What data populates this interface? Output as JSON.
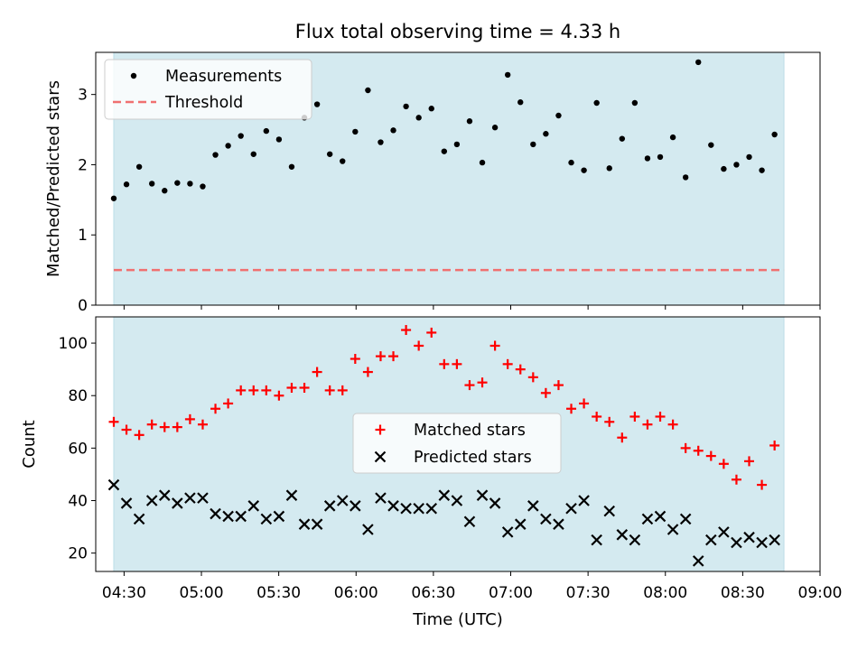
{
  "chart_data": [
    {
      "type": "scatter",
      "title": "Flux total observing time = 4.33 h",
      "xlabel": "",
      "ylabel": "Matched/Predicted stars",
      "ylim": [
        0,
        3.6
      ],
      "yticks": [
        0,
        1,
        2,
        3
      ],
      "yticklabels": [
        "0",
        "1",
        "2",
        "3"
      ],
      "x_start": "04:26",
      "x_step_minutes": 4.93,
      "observing_window": [
        "04:26",
        "08:46"
      ],
      "observing_window_color": "#d4eaf0",
      "series": [
        {
          "name": "Measurements",
          "marker": "dot",
          "color": "#000000",
          "values": [
            1.52,
            1.72,
            1.97,
            1.73,
            1.63,
            1.74,
            1.73,
            1.69,
            2.14,
            2.27,
            2.41,
            2.15,
            2.48,
            2.36,
            1.97,
            2.67,
            2.86,
            2.15,
            2.05,
            2.47,
            3.06,
            2.32,
            2.49,
            2.83,
            2.67,
            2.8,
            2.19,
            2.29,
            2.62,
            2.03,
            2.53,
            3.28,
            2.89,
            2.29,
            2.44,
            2.7,
            2.03,
            1.92,
            2.88,
            1.95,
            2.37,
            2.88,
            2.09,
            2.11,
            2.39,
            1.82,
            3.46,
            2.28,
            1.94,
            2.0,
            2.11,
            1.92,
            2.43
          ]
        }
      ],
      "threshold": {
        "name": "Threshold",
        "value": 0.5,
        "color": "#f07070"
      },
      "legend_position": "upper-left"
    },
    {
      "type": "scatter",
      "title": "",
      "xlabel": "Time (UTC)",
      "ylabel": "Count",
      "ylim": [
        13,
        110
      ],
      "yticks": [
        20,
        40,
        60,
        80,
        100
      ],
      "yticklabels": [
        "20",
        "40",
        "60",
        "80",
        "100"
      ],
      "xticklabels": [
        "04:30",
        "05:00",
        "05:30",
        "06:00",
        "06:30",
        "07:00",
        "07:30",
        "08:00",
        "08:30",
        "09:00"
      ],
      "xlim": [
        "04:19",
        "09:00"
      ],
      "x_start": "04:26",
      "x_step_minutes": 4.93,
      "observing_window": [
        "04:26",
        "08:46"
      ],
      "observing_window_color": "#d4eaf0",
      "series": [
        {
          "name": "Matched stars",
          "marker": "plus",
          "color": "#ff0000",
          "values": [
            70,
            67,
            65,
            69,
            68,
            68,
            71,
            69,
            75,
            77,
            82,
            82,
            82,
            80,
            83,
            83,
            89,
            82,
            82,
            94,
            89,
            95,
            95,
            105,
            99,
            104,
            92,
            92,
            84,
            85,
            99,
            92,
            90,
            87,
            81,
            84,
            75,
            77,
            72,
            70,
            64,
            72,
            69,
            72,
            69,
            60,
            59,
            57,
            54,
            48,
            55,
            46,
            61
          ]
        },
        {
          "name": "Predicted stars",
          "marker": "x",
          "color": "#000000",
          "values": [
            46,
            39,
            33,
            40,
            42,
            39,
            41,
            41,
            35,
            34,
            34,
            38,
            33,
            34,
            42,
            31,
            31,
            38,
            40,
            38,
            29,
            41,
            38,
            37,
            37,
            37,
            42,
            40,
            32,
            42,
            39,
            28,
            31,
            38,
            33,
            31,
            37,
            40,
            25,
            36,
            27,
            25,
            33,
            34,
            29,
            33,
            17,
            25,
            28,
            24,
            26,
            24,
            25
          ]
        }
      ],
      "legend_position": "center"
    }
  ]
}
